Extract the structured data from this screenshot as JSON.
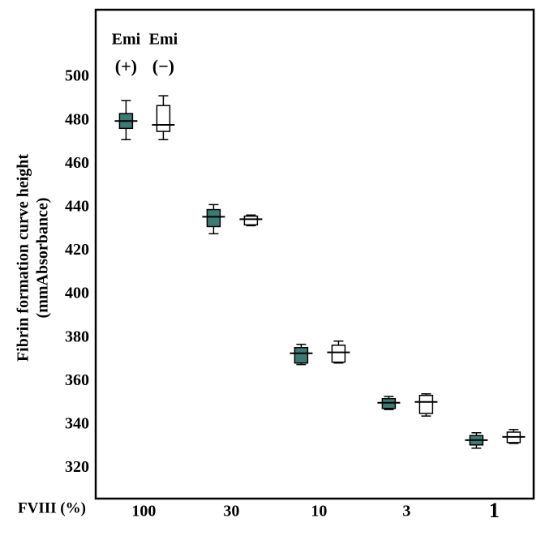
{
  "chart_data": {
    "type": "box",
    "ylabel": [
      "Fibrin formation curve height",
      "(mmAbsorbance)"
    ],
    "xlabel": "FVIII (%)",
    "categories": [
      "100",
      "30",
      "10",
      "3",
      "1"
    ],
    "series": [
      {
        "name": "Emi",
        "label": "(+)",
        "color": "#3d7a74",
        "values": [
          {
            "low": 471.2,
            "q1": 476.4,
            "median": 479.8,
            "q3": 483.2,
            "high": 489.2
          },
          {
            "low": 427.9,
            "q1": 431.2,
            "median": 435.7,
            "q3": 439,
            "high": 441.3
          },
          {
            "low": 367.7,
            "q1": 368.4,
            "median": 372.9,
            "q3": 375.5,
            "high": 377
          },
          {
            "low": 347,
            "q1": 347.5,
            "median": 350.1,
            "q3": 352,
            "high": 353
          },
          {
            "low": 329.2,
            "q1": 330.7,
            "median": 332.9,
            "q3": 335,
            "high": 336.3
          }
        ]
      },
      {
        "name": "Emi",
        "label": "(−)",
        "color": "#ffffff",
        "values": [
          {
            "low": 471.2,
            "q1": 475,
            "median": 478,
            "q3": 486.9,
            "high": 491.4
          },
          {
            "low": 431.6,
            "q1": 432,
            "median": 434.6,
            "q3": 436,
            "high": 436.5
          },
          {
            "low": 368.4,
            "q1": 368.8,
            "median": 373.3,
            "q3": 376.6,
            "high": 378.5
          },
          {
            "low": 344,
            "q1": 345.2,
            "median": 350.5,
            "q3": 353.5,
            "high": 354.2
          },
          {
            "low": 331.4,
            "q1": 331.8,
            "median": 334.4,
            "q3": 336.6,
            "high": 337.8
          }
        ]
      }
    ],
    "ylim": [
      306,
      531
    ],
    "yticks": [
      320,
      340,
      360,
      380,
      400,
      420,
      440,
      460,
      480,
      500
    ]
  }
}
